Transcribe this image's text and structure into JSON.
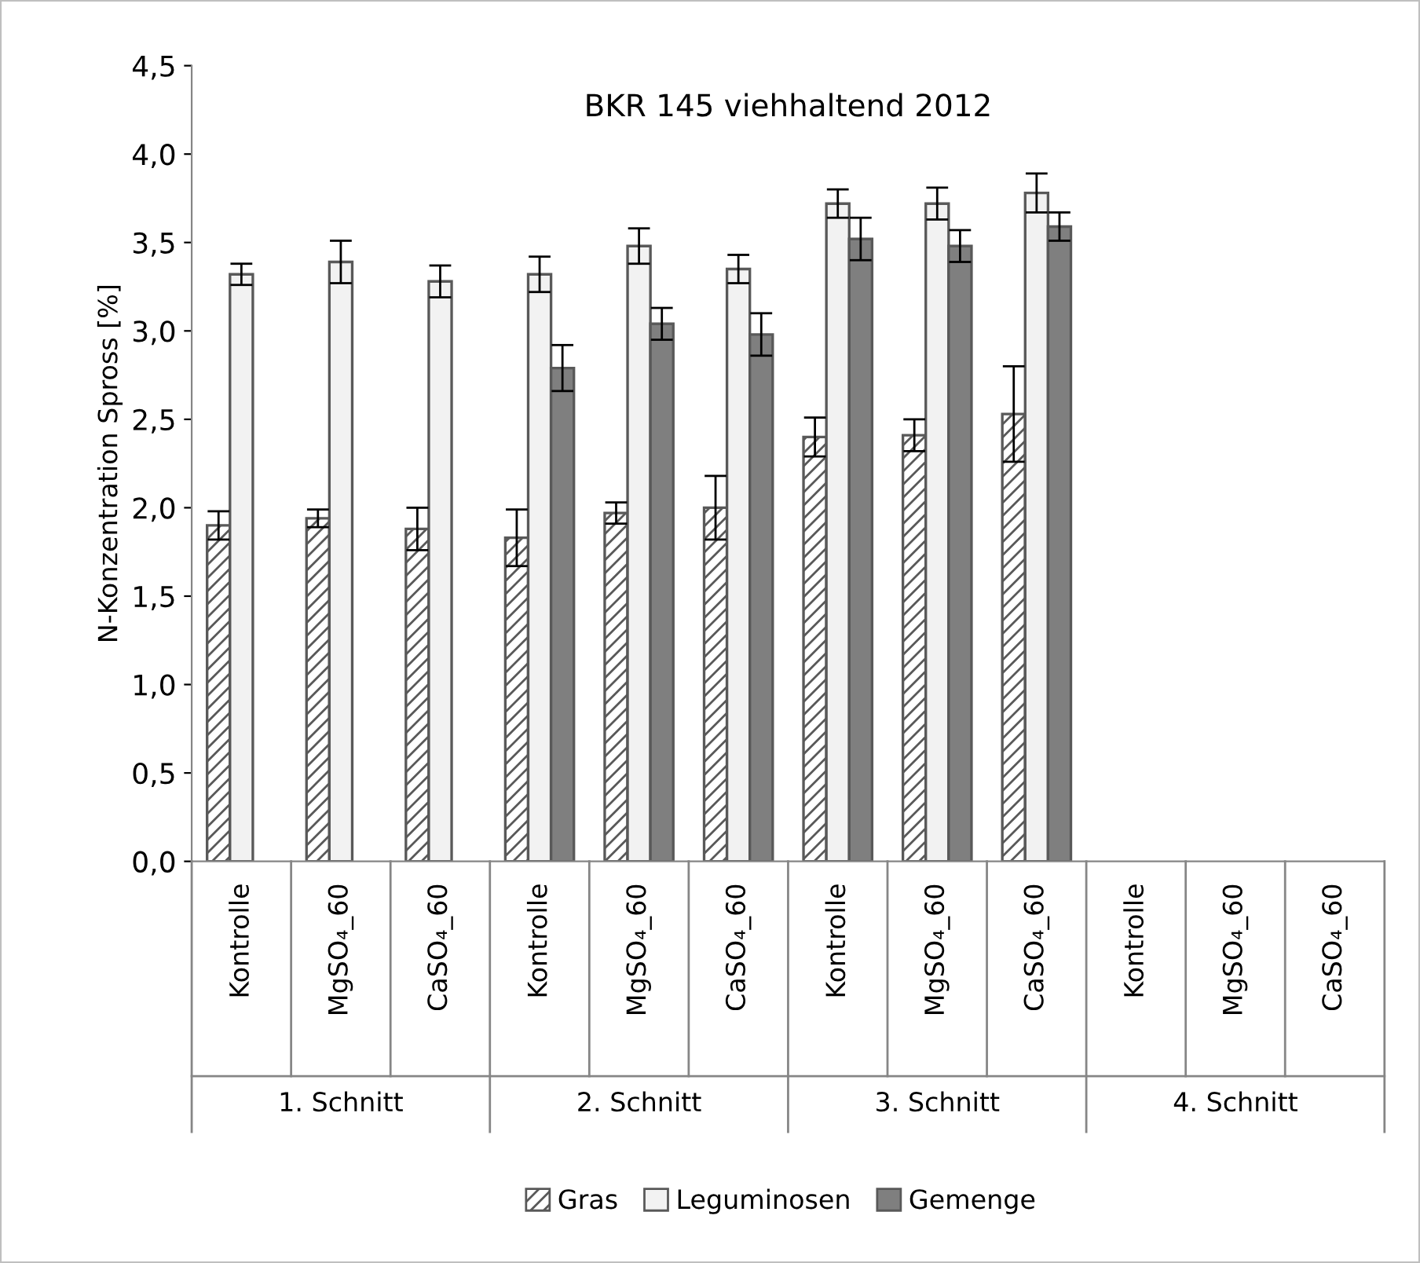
{
  "chart_data": {
    "type": "bar",
    "title": "BKR 145 viehhaltend 2012",
    "ylabel": "N-Konzentration Spross [%]",
    "categories": [
      "Kontrolle",
      "MgSO₄_60",
      "CaSO₄_60",
      "Kontrolle",
      "MgSO₄_60",
      "CaSO₄_60",
      "Kontrolle",
      "MgSO₄_60",
      "CaSO₄_60",
      "Kontrolle",
      "MgSO₄_60",
      "CaSO₄_60"
    ],
    "annotations": [
      "1. Schnitt",
      "2. Schnitt",
      "3. Schnitt",
      "4. Schnitt"
    ],
    "series": [
      {
        "name": "Gras",
        "color": "#595959",
        "values": [
          1.9,
          1.94,
          1.88,
          1.83,
          1.97,
          2.0,
          2.4,
          2.41,
          2.53,
          null,
          null,
          null
        ],
        "errors": [
          0.08,
          0.05,
          0.12,
          0.16,
          0.06,
          0.18,
          0.11,
          0.09,
          0.27,
          null,
          null,
          null
        ]
      },
      {
        "name": "Leguminosen",
        "color": "#f2f2f2",
        "values": [
          3.32,
          3.39,
          3.28,
          3.32,
          3.48,
          3.35,
          3.72,
          3.72,
          3.78,
          null,
          null,
          null
        ],
        "errors": [
          0.06,
          0.12,
          0.09,
          0.1,
          0.1,
          0.08,
          0.08,
          0.09,
          0.11,
          null,
          null,
          null
        ]
      },
      {
        "name": "Gemenge",
        "color": "#7f7f7f",
        "values": [
          null,
          null,
          null,
          2.79,
          3.04,
          2.98,
          3.52,
          3.48,
          3.59,
          null,
          null,
          null
        ],
        "errors": [
          null,
          null,
          null,
          0.13,
          0.09,
          0.12,
          0.12,
          0.09,
          0.08,
          null,
          null,
          null
        ]
      }
    ],
    "ylim": [
      0,
      4.5
    ],
    "yticks": [
      {
        "value": 0,
        "label": "0,0"
      },
      {
        "value": 0.5,
        "label": "0,5"
      },
      {
        "value": 1,
        "label": "1,0"
      },
      {
        "value": 1.5,
        "label": "1,5"
      },
      {
        "value": 2,
        "label": "2,0"
      },
      {
        "value": 2.5,
        "label": "2,5"
      },
      {
        "value": 3,
        "label": "3,0"
      },
      {
        "value": 3.5,
        "label": "3,5"
      },
      {
        "value": 4,
        "label": "4,0"
      },
      {
        "value": 4.5,
        "label": "4,5"
      }
    ],
    "grid": false,
    "legend": "bottom"
  }
}
